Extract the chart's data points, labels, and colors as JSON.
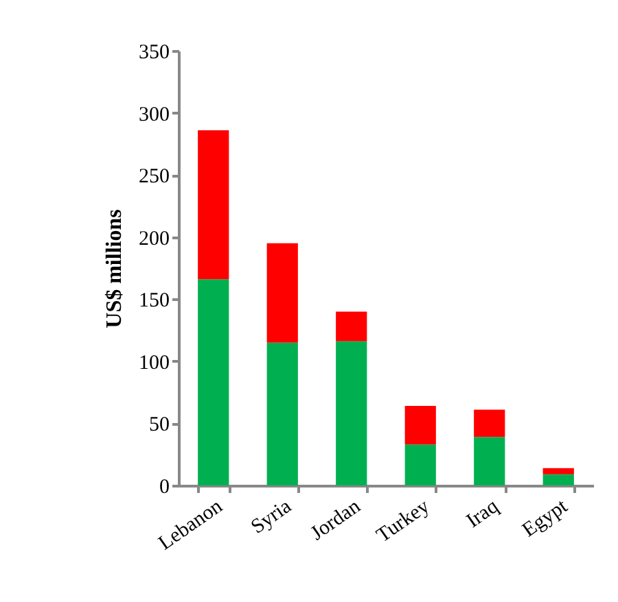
{
  "chart_data": {
    "type": "bar",
    "stacked": true,
    "ylabel": "US$ millions",
    "categories": [
      "Lebanon",
      "Syria",
      "Jordan",
      "Turkey",
      "Iraq",
      "Egypt"
    ],
    "series": [
      {
        "color": "#00b050",
        "values": [
          166,
          115,
          116,
          33,
          39,
          9
        ]
      },
      {
        "color": "#ff0000",
        "values": [
          120,
          80,
          24,
          31,
          22,
          5
        ]
      }
    ],
    "ylim": [
      0,
      350
    ],
    "yticks": [
      0,
      50,
      100,
      150,
      200,
      250,
      300,
      350
    ],
    "grid": false,
    "legend": false
  }
}
